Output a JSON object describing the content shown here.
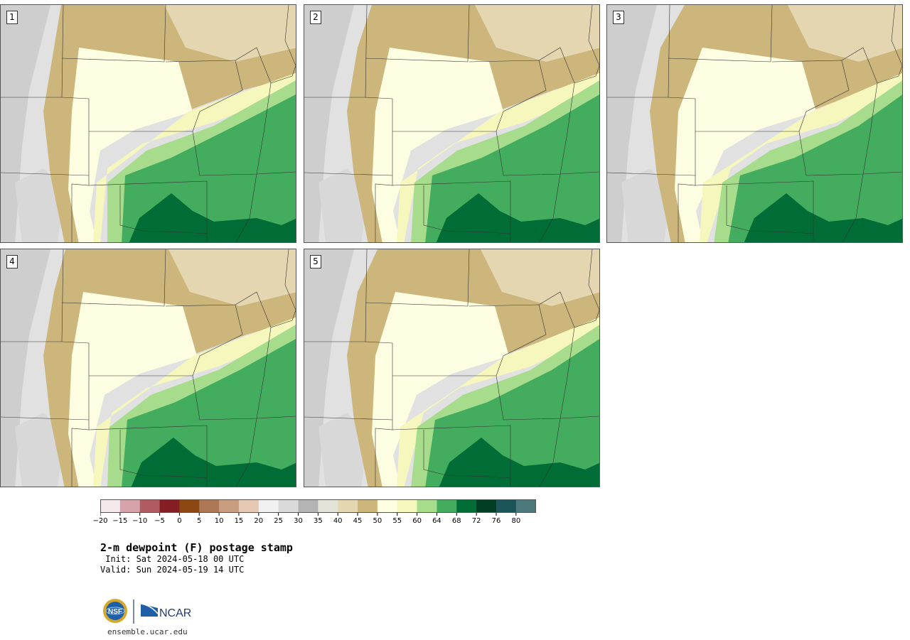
{
  "title": "2-m dewpoint (F) postage stamp",
  "init_text": " Init: Sat 2024-05-18 00 UTC",
  "valid_text": "Valid: Sun 2024-05-19 14 UTC",
  "footer_url": "ensemble.ucar.edu",
  "logo": {
    "left_text": "NSF",
    "right_text": "NCAR"
  },
  "members": [
    {
      "label": "1"
    },
    {
      "label": "2"
    },
    {
      "label": "3"
    },
    {
      "label": "4"
    },
    {
      "label": "5"
    }
  ],
  "colorbar": {
    "ticks": [
      "−20",
      "−15",
      "−10",
      "−5",
      "0",
      "5",
      "10",
      "15",
      "20",
      "25",
      "30",
      "35",
      "40",
      "45",
      "50",
      "55",
      "60",
      "64",
      "68",
      "72",
      "76",
      "80"
    ],
    "colors": [
      "#f6e9ec",
      "#d6a3aa",
      "#b05b61",
      "#851d24",
      "#8c4713",
      "#ad7855",
      "#c89d80",
      "#e6c9b4",
      "#f1f1f1",
      "#dadada",
      "#b4b4b4",
      "#e3e2d6",
      "#e4d6b0",
      "#ccb67c",
      "#fdfde1",
      "#f6f7bc",
      "#a7dc8d",
      "#44ac5e",
      "#006d36",
      "#003d22",
      "#1b5459",
      "#4d797d"
    ]
  },
  "palette": {
    "gray_light": "#e1e1e1",
    "gray_mid": "#c9c9c9",
    "tan_light": "#e4d6b0",
    "tan": "#ccb67c",
    "cream": "#fdfde1",
    "yellow": "#f6f7bc",
    "green_light": "#a7dc8d",
    "green": "#44ac5e",
    "green_dark": "#006d36"
  }
}
